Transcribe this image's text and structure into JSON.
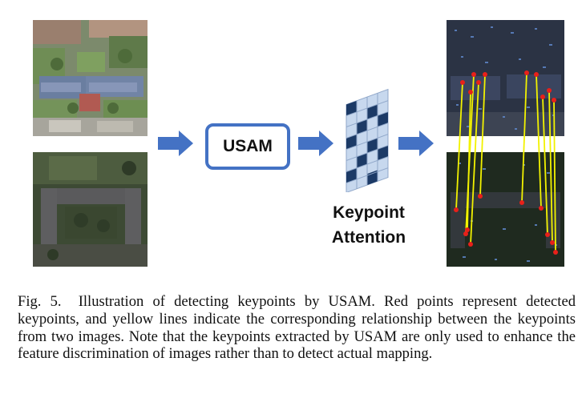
{
  "figure": {
    "usam_label": "USAM",
    "attention_label_line1": "Keypoint",
    "attention_label_line2": "Attention",
    "colors": {
      "arrow": "#4472c4",
      "box_border": "#4472c4",
      "keypoint": "#e8201a",
      "match_line": "#f2f200",
      "attention_dark": "#1c3a66",
      "attention_light": "#c7d8ee"
    },
    "icons": [
      "aerial-photo",
      "satellite-photo",
      "right-arrow",
      "attention-grid",
      "matched-feature-photo"
    ]
  },
  "caption": {
    "label": "Fig. 5.",
    "text": "Illustration of detecting keypoints by USAM. Red points represent detected keypoints, and yellow lines indicate the corresponding relationship between the keypoints from two images. Note that the keypoints extracted by USAM are only used to enhance the feature discrimination of images rather than to detect actual mapping."
  }
}
